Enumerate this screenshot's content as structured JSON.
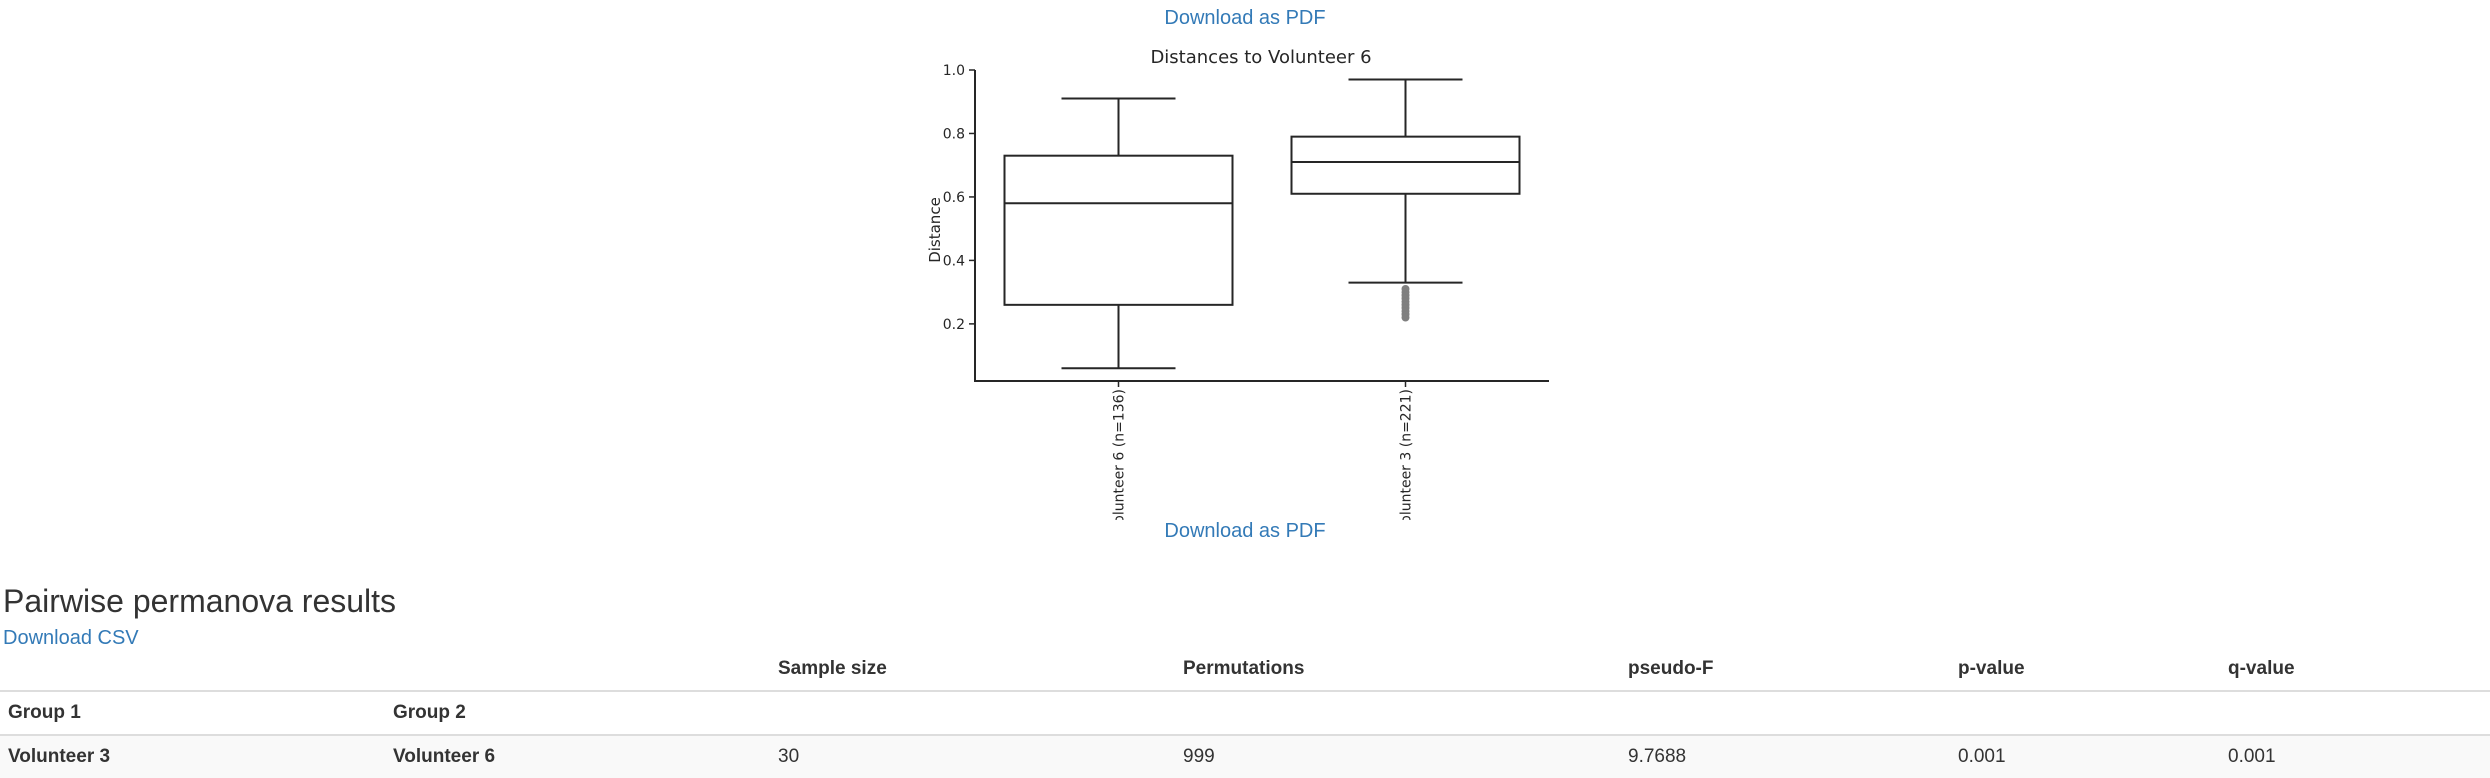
{
  "links": {
    "download_pdf_top": "Download as PDF",
    "download_pdf_bottom": "Download as PDF",
    "download_csv": "Download CSV"
  },
  "chart_data": {
    "type": "box",
    "title": "Distances to Volunteer 6",
    "xlabel": "",
    "ylabel": "Distance",
    "ylim": [
      0.02,
      1.0
    ],
    "yticks": [
      "1.0",
      "0.8",
      "0.6",
      "0.4",
      "0.2"
    ],
    "tick_values": [
      1.0,
      0.8,
      0.6,
      0.4,
      0.2
    ],
    "categories": [
      "olunteer 6 (n=136)",
      "olunteer 3 (n=221)"
    ],
    "boxes": [
      {
        "whisker_low": 0.06,
        "q1": 0.26,
        "median": 0.58,
        "q3": 0.73,
        "whisker_high": 0.91,
        "outliers": []
      },
      {
        "whisker_low": 0.33,
        "q1": 0.61,
        "median": 0.71,
        "q3": 0.79,
        "whisker_high": 0.97,
        "outliers": [
          0.31,
          0.3,
          0.29,
          0.28,
          0.27,
          0.26,
          0.25,
          0.24,
          0.23,
          0.22
        ]
      }
    ],
    "grid": false,
    "colors": {
      "stroke": "#262626",
      "outlier": "#7f7f7f"
    }
  },
  "results": {
    "heading": "Pairwise permanova results",
    "columns": [
      "Sample size",
      "Permutations",
      "pseudo-F",
      "p-value",
      "q-value"
    ],
    "index_headers": [
      "Group 1",
      "Group 2"
    ],
    "rows": [
      {
        "group1": "Volunteer 3",
        "group2": "Volunteer 6",
        "sample_size": "30",
        "permutations": "999",
        "pseudo_f": "9.7688",
        "p_value": "0.001",
        "q_value": "0.001"
      }
    ]
  }
}
